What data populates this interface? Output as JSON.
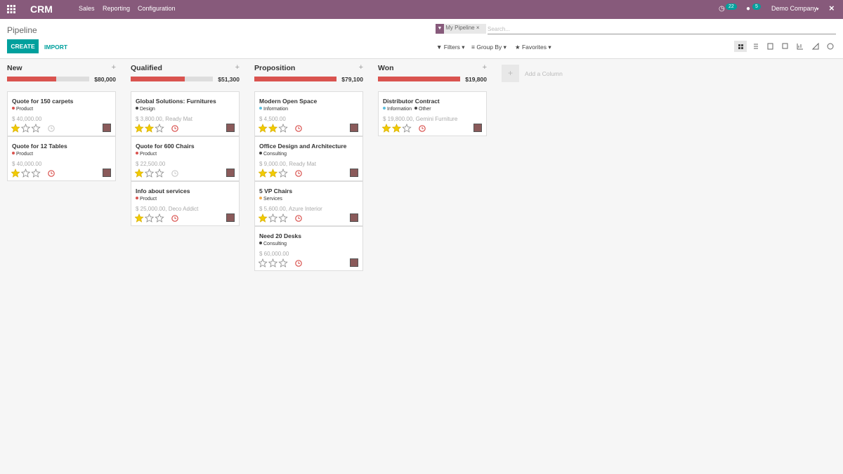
{
  "navbar": {
    "app": "CRM",
    "menus": [
      "Sales",
      "Reporting",
      "Configuration"
    ],
    "activity_count": "22",
    "message_count": "5",
    "company": "Demo Company"
  },
  "control_panel": {
    "breadcrumb": "Pipeline",
    "facet": "My Pipeline",
    "search_placeholder": "Search...",
    "create": "CREATE",
    "import": "IMPORT",
    "filters": "Filters",
    "group_by": "Group By",
    "favorites": "Favorites"
  },
  "kanban": {
    "add_column": "Add a Column",
    "columns": [
      {
        "name": "New",
        "total": "$80,000",
        "progress": 60,
        "cards": [
          {
            "title": "Quote for 150 carpets",
            "tags": [
              {
                "label": "Product",
                "color": "#d9534f"
              }
            ],
            "subtitle": "$ 40,000.00",
            "priority": 1,
            "activity": "none"
          },
          {
            "title": "Quote for 12 Tables",
            "tags": [
              {
                "label": "Product",
                "color": "#d9534f"
              }
            ],
            "subtitle": "$ 40,000.00",
            "priority": 1,
            "activity": "overdue"
          }
        ]
      },
      {
        "name": "Qualified",
        "total": "$51,300",
        "progress": 66,
        "cards": [
          {
            "title": "Global Solutions: Furnitures",
            "tags": [
              {
                "label": "Design",
                "color": "#444"
              }
            ],
            "subtitle": "$ 3,800.00, Ready Mat",
            "priority": 2,
            "activity": "overdue"
          },
          {
            "title": "Quote for 600 Chairs",
            "tags": [
              {
                "label": "Product",
                "color": "#d9534f"
              }
            ],
            "subtitle": "$ 22,500.00",
            "priority": 1,
            "activity": "none"
          },
          {
            "title": "Info about services",
            "tags": [
              {
                "label": "Product",
                "color": "#d9534f"
              }
            ],
            "subtitle": "$ 25,000.00, Deco Addict",
            "priority": 1,
            "activity": "overdue"
          }
        ]
      },
      {
        "name": "Proposition",
        "total": "$79,100",
        "progress": 100,
        "cards": [
          {
            "title": "Modern Open Space",
            "tags": [
              {
                "label": "Information",
                "color": "#5bc0de"
              }
            ],
            "subtitle": "$ 4,500.00",
            "priority": 2,
            "activity": "overdue"
          },
          {
            "title": "Office Design and Architecture",
            "tags": [
              {
                "label": "Consulting",
                "color": "#444"
              }
            ],
            "subtitle": "$ 9,000.00, Ready Mat",
            "priority": 2,
            "activity": "overdue"
          },
          {
            "title": "5 VP Chairs",
            "tags": [
              {
                "label": "Services",
                "color": "#f0ad4e"
              }
            ],
            "subtitle": "$ 5,600.00, Azure Interior",
            "priority": 1,
            "activity": "overdue"
          },
          {
            "title": "Need 20 Desks",
            "tags": [
              {
                "label": "Consulting",
                "color": "#444"
              }
            ],
            "subtitle": "$ 60,000.00",
            "priority": 0,
            "activity": "overdue"
          }
        ]
      },
      {
        "name": "Won",
        "total": "$19,800",
        "progress": 100,
        "cards": [
          {
            "title": "Distributor Contract",
            "tags": [
              {
                "label": "Information",
                "color": "#5bc0de"
              },
              {
                "label": "Other",
                "color": "#444"
              }
            ],
            "subtitle": "$ 19,800.00, Gemini Furniture",
            "priority": 2,
            "activity": "overdue"
          }
        ]
      }
    ]
  }
}
